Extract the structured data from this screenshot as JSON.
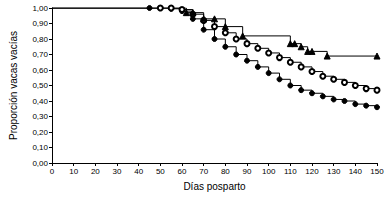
{
  "chart_data": {
    "type": "line",
    "x_label": "Días posparto",
    "y_label": "Proporción vacas vacías",
    "xlim": [
      0,
      150
    ],
    "xticks": [
      0,
      10,
      20,
      30,
      40,
      50,
      60,
      70,
      80,
      90,
      100,
      110,
      120,
      130,
      140,
      150
    ],
    "ylim": [
      0,
      1
    ],
    "yticks": [
      {
        "value": 0,
        "label": "0,00"
      },
      {
        "value": 0.1,
        "label": "0,10"
      },
      {
        "value": 0.2,
        "label": "0,20"
      },
      {
        "value": 0.3,
        "label": "0,30"
      },
      {
        "value": 0.4,
        "label": "0,40"
      },
      {
        "value": 0.5,
        "label": "0,50"
      },
      {
        "value": 0.6,
        "label": "0,60"
      },
      {
        "value": 0.7,
        "label": "0,70"
      },
      {
        "value": 0.8,
        "label": "0,80"
      },
      {
        "value": 0.9,
        "label": "0,90"
      },
      {
        "value": 1,
        "label": "1,00"
      }
    ],
    "grid": false,
    "series": [
      {
        "color": "#000000",
        "marker": "circle",
        "line_style": "step",
        "x": [
          0,
          45,
          50,
          55,
          60,
          65,
          70,
          75,
          80,
          85,
          90,
          95,
          100,
          105,
          110,
          115,
          120,
          125,
          130,
          135,
          140,
          145,
          150
        ],
        "values": [
          1,
          1,
          1,
          0.995,
          0.98,
          0.93,
          0.86,
          0.8,
          0.75,
          0.7,
          0.66,
          0.62,
          0.58,
          0.54,
          0.5,
          0.47,
          0.45,
          0.43,
          0.41,
          0.4,
          0.38,
          0.37,
          0.36
        ]
      },
      {
        "color": "#000000",
        "marker": "circle_open",
        "line_style": "step",
        "x": [
          0,
          50,
          55,
          60,
          65,
          70,
          75,
          80,
          85,
          90,
          95,
          100,
          105,
          110,
          115,
          120,
          125,
          130,
          135,
          140,
          145,
          150
        ],
        "values": [
          1,
          1,
          1,
          0.99,
          0.96,
          0.92,
          0.88,
          0.84,
          0.8,
          0.77,
          0.74,
          0.71,
          0.68,
          0.65,
          0.62,
          0.59,
          0.56,
          0.54,
          0.52,
          0.5,
          0.48,
          0.47
        ]
      },
      {
        "color": "#000000",
        "marker": "triangle",
        "line_style": "step",
        "x": [
          0,
          62,
          65,
          70,
          75,
          80,
          88,
          110,
          112,
          115,
          118,
          120,
          127,
          150
        ],
        "values": [
          1,
          0.97,
          0.97,
          0.93,
          0.93,
          0.88,
          0.82,
          0.77,
          0.77,
          0.75,
          0.72,
          0.72,
          0.69,
          0.69
        ]
      }
    ]
  }
}
